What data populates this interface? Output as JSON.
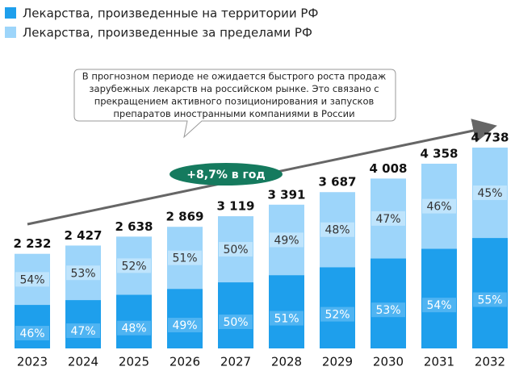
{
  "chart_data": {
    "type": "stacked-bar",
    "categories": [
      "2023",
      "2024",
      "2025",
      "2026",
      "2027",
      "2028",
      "2029",
      "2030",
      "2031",
      "2032"
    ],
    "series": [
      {
        "name": "Лекарства, произведенные на территории РФ",
        "color": "#1e9fec",
        "values": [
          46,
          47,
          48,
          49,
          50,
          51,
          52,
          53,
          54,
          55
        ],
        "value_labels": [
          "46%",
          "47%",
          "48%",
          "49%",
          "50%",
          "51%",
          "52%",
          "53%",
          "54%",
          "55%"
        ]
      },
      {
        "name": "Лекарства, произведенные за пределами РФ",
        "color": "#9dd5fa",
        "values": [
          54,
          53,
          52,
          51,
          50,
          49,
          48,
          47,
          46,
          45
        ],
        "value_labels": [
          "54%",
          "53%",
          "52%",
          "51%",
          "50%",
          "49%",
          "48%",
          "47%",
          "46%",
          "45%"
        ]
      }
    ],
    "totals": {
      "values": [
        2232,
        2427,
        2638,
        2869,
        3119,
        3391,
        3687,
        4008,
        4358,
        4738
      ],
      "value_labels": [
        "2 232",
        "2 427",
        "2 638",
        "2 869",
        "3 119",
        "3 391",
        "3 687",
        "4 008",
        "4 358",
        "4 738"
      ]
    },
    "callout": [
      "В прогнозном периоде не ожидается быстрого роста продаж",
      "зарубежных лекарств на российском рынке. Это связано с",
      "прекращением активного позиционирования и запусков",
      "препаратов иностранными компаниями в России"
    ],
    "growth_label": "+8,7% в год"
  }
}
